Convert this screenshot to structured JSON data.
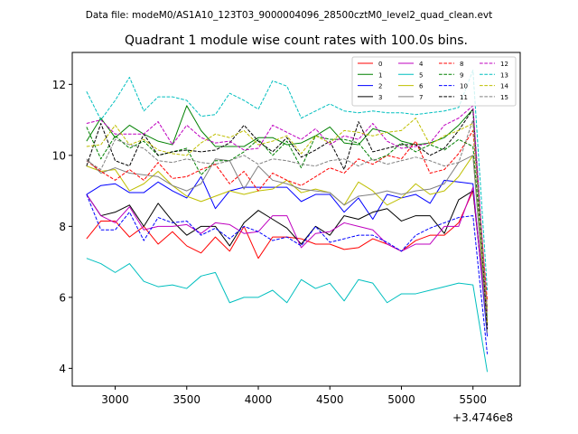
{
  "chart_data": {
    "type": "line",
    "suptitle": "Data file: modeM0/AS1A10_123T03_9000004096_28500cztM0_level2_quad_clean.evt",
    "title": "Quadrant 1 module wise count rates with 100.0s bins.",
    "xlabel": "",
    "ylabel": "",
    "x_offset_label": "+3.4746e8",
    "xlim": [
      2700,
      5830
    ],
    "ylim": [
      3.5,
      12.9
    ],
    "x_ticks": [
      3000,
      3500,
      4000,
      4500,
      5000,
      5500
    ],
    "y_ticks": [
      4,
      6,
      8,
      10,
      12
    ],
    "x": [
      2800,
      2900,
      3000,
      3100,
      3200,
      3300,
      3400,
      3500,
      3600,
      3700,
      3800,
      3900,
      4000,
      4100,
      4200,
      4300,
      4400,
      4500,
      4600,
      4700,
      4800,
      4900,
      5000,
      5100,
      5200,
      5300,
      5400,
      5500,
      5600
    ],
    "legend": {
      "position": "upper-right",
      "columns": 4
    },
    "series": [
      {
        "name": "0",
        "color": "#ff0000",
        "dash": "solid",
        "values": [
          7.65,
          8.15,
          8.15,
          7.7,
          8.0,
          7.5,
          7.85,
          7.45,
          7.25,
          7.7,
          7.3,
          8.0,
          7.1,
          7.7,
          7.7,
          7.65,
          7.5,
          7.5,
          7.35,
          7.4,
          7.65,
          7.5,
          7.3,
          7.6,
          7.75,
          7.75,
          8.1,
          9.0,
          5.3
        ]
      },
      {
        "name": "1",
        "color": "#008000",
        "dash": "solid",
        "values": [
          10.4,
          11.05,
          10.5,
          10.85,
          10.6,
          10.4,
          10.3,
          11.4,
          10.7,
          10.25,
          10.25,
          10.25,
          10.5,
          10.5,
          10.3,
          10.35,
          10.55,
          10.8,
          10.35,
          10.3,
          10.75,
          10.65,
          10.4,
          10.3,
          10.35,
          10.5,
          10.85,
          11.3,
          5.4
        ]
      },
      {
        "name": "2",
        "color": "#0000ff",
        "dash": "solid",
        "values": [
          8.9,
          9.15,
          9.2,
          8.95,
          8.95,
          9.25,
          9.0,
          8.8,
          9.4,
          8.5,
          9.0,
          9.1,
          9.1,
          9.1,
          9.1,
          8.7,
          8.9,
          8.9,
          8.4,
          8.8,
          8.2,
          8.9,
          8.8,
          8.9,
          8.65,
          9.3,
          9.25,
          9.2,
          4.9
        ]
      },
      {
        "name": "3",
        "color": "#000000",
        "dash": "solid",
        "values": [
          8.9,
          8.3,
          8.4,
          8.6,
          8.0,
          8.65,
          8.15,
          7.75,
          8.0,
          8.0,
          7.45,
          8.1,
          8.45,
          8.2,
          7.95,
          7.5,
          8.0,
          7.75,
          8.3,
          8.2,
          8.4,
          8.5,
          8.15,
          8.3,
          8.3,
          7.8,
          8.75,
          9.0,
          5.2
        ]
      },
      {
        "name": "4",
        "color": "#bf00bf",
        "dash": "solid",
        "values": [
          8.9,
          8.3,
          8.1,
          8.55,
          7.9,
          8.0,
          8.0,
          8.05,
          7.8,
          8.1,
          8.05,
          7.8,
          7.85,
          8.3,
          8.3,
          7.4,
          7.8,
          7.85,
          8.1,
          8.0,
          7.9,
          7.5,
          7.3,
          7.5,
          7.5,
          8.0,
          8.0,
          9.1,
          5.1
        ]
      },
      {
        "name": "5",
        "color": "#00bfbf",
        "dash": "solid",
        "values": [
          7.1,
          6.95,
          6.7,
          6.95,
          6.45,
          6.3,
          6.35,
          6.25,
          6.6,
          6.7,
          5.85,
          6.0,
          6.0,
          6.2,
          5.85,
          6.5,
          6.25,
          6.4,
          5.9,
          6.5,
          6.4,
          5.85,
          6.1,
          6.1,
          6.2,
          6.3,
          6.4,
          6.35,
          3.9
        ]
      },
      {
        "name": "6",
        "color": "#bfbf00",
        "dash": "solid",
        "values": [
          9.7,
          9.55,
          9.6,
          9.0,
          9.2,
          9.55,
          9.15,
          8.85,
          8.7,
          8.85,
          9.0,
          8.9,
          9.0,
          9.05,
          9.3,
          8.95,
          9.05,
          8.95,
          8.6,
          9.25,
          9.0,
          8.6,
          8.8,
          9.2,
          8.9,
          9.0,
          9.4,
          10.0,
          5.3
        ]
      },
      {
        "name": "7",
        "color": "#808080",
        "dash": "solid",
        "values": [
          9.9,
          9.5,
          9.65,
          9.5,
          9.45,
          9.4,
          9.15,
          9.0,
          9.2,
          9.9,
          9.85,
          9.05,
          9.7,
          9.3,
          9.2,
          9.05,
          9.0,
          8.95,
          8.6,
          8.85,
          8.9,
          9.0,
          8.9,
          9.0,
          9.05,
          9.2,
          9.8,
          10.0,
          5.0
        ]
      },
      {
        "name": "8",
        "color": "#ff0000",
        "dash": "dashed",
        "values": [
          9.85,
          9.55,
          9.3,
          9.6,
          9.3,
          9.8,
          9.35,
          9.4,
          9.6,
          9.75,
          9.2,
          9.55,
          9.0,
          9.5,
          9.3,
          9.15,
          9.4,
          9.65,
          9.5,
          9.9,
          9.75,
          10.0,
          9.9,
          10.4,
          9.5,
          9.6,
          10.05,
          10.7,
          5.9
        ]
      },
      {
        "name": "9",
        "color": "#008000",
        "dash": "dashed",
        "values": [
          10.8,
          9.9,
          10.55,
          10.2,
          10.4,
          10.0,
          10.1,
          10.2,
          9.45,
          9.85,
          9.85,
          10.1,
          10.45,
          10.0,
          10.4,
          9.65,
          10.55,
          10.45,
          10.45,
          10.35,
          9.85,
          10.0,
          10.35,
          10.1,
          10.3,
          10.15,
          10.45,
          10.25,
          5.7
        ]
      },
      {
        "name": "10",
        "color": "#0000ff",
        "dash": "dashed",
        "values": [
          8.9,
          7.9,
          7.9,
          8.4,
          7.6,
          8.25,
          8.1,
          8.15,
          7.75,
          7.95,
          7.65,
          8.0,
          7.85,
          7.6,
          7.7,
          7.45,
          8.0,
          7.55,
          7.65,
          7.75,
          7.75,
          7.55,
          7.3,
          7.75,
          7.95,
          8.1,
          8.25,
          8.3,
          4.4
        ]
      },
      {
        "name": "11",
        "color": "#000000",
        "dash": "dashed",
        "values": [
          9.7,
          10.9,
          9.85,
          9.7,
          10.6,
          10.0,
          10.1,
          10.15,
          10.1,
          10.15,
          10.35,
          10.85,
          10.4,
          10.1,
          10.5,
          9.95,
          10.15,
          10.4,
          9.6,
          10.95,
          10.1,
          10.2,
          10.3,
          10.3,
          10.0,
          10.2,
          10.7,
          11.3,
          5.1
        ]
      },
      {
        "name": "12",
        "color": "#bf00bf",
        "dash": "dashed",
        "values": [
          10.9,
          11.0,
          10.6,
          10.6,
          10.6,
          10.95,
          10.3,
          10.85,
          10.5,
          10.35,
          10.4,
          10.15,
          10.2,
          10.85,
          10.65,
          10.45,
          10.75,
          10.3,
          10.55,
          10.45,
          10.9,
          10.4,
          10.2,
          10.25,
          10.35,
          10.85,
          11.05,
          11.4,
          5.6
        ]
      },
      {
        "name": "13",
        "color": "#00bfbf",
        "dash": "dashed",
        "values": [
          11.8,
          11.0,
          11.55,
          12.2,
          11.25,
          11.65,
          11.65,
          11.55,
          11.1,
          11.15,
          11.75,
          11.55,
          11.3,
          12.1,
          11.95,
          11.05,
          11.25,
          11.45,
          11.25,
          11.2,
          11.25,
          11.2,
          11.2,
          11.15,
          11.2,
          11.25,
          11.35,
          12.4,
          6.2
        ]
      },
      {
        "name": "14",
        "color": "#bfbf00",
        "dash": "dashed",
        "values": [
          10.25,
          10.3,
          10.85,
          10.3,
          10.45,
          10.15,
          10.05,
          10.0,
          10.35,
          10.6,
          10.5,
          10.7,
          10.3,
          10.4,
          10.55,
          10.05,
          10.55,
          10.35,
          10.7,
          10.65,
          10.55,
          10.65,
          10.7,
          11.05,
          10.3,
          10.55,
          10.7,
          10.9,
          5.6
        ]
      },
      {
        "name": "15",
        "color": "#808080",
        "dash": "dashed",
        "values": [
          9.85,
          9.6,
          10.45,
          10.3,
          10.2,
          9.85,
          9.8,
          9.9,
          9.8,
          9.75,
          9.85,
          10.0,
          9.75,
          9.9,
          9.85,
          9.75,
          9.7,
          9.85,
          9.9,
          9.7,
          9.9,
          9.75,
          9.85,
          9.95,
          9.85,
          9.7,
          9.8,
          11.0,
          5.4
        ]
      }
    ]
  }
}
